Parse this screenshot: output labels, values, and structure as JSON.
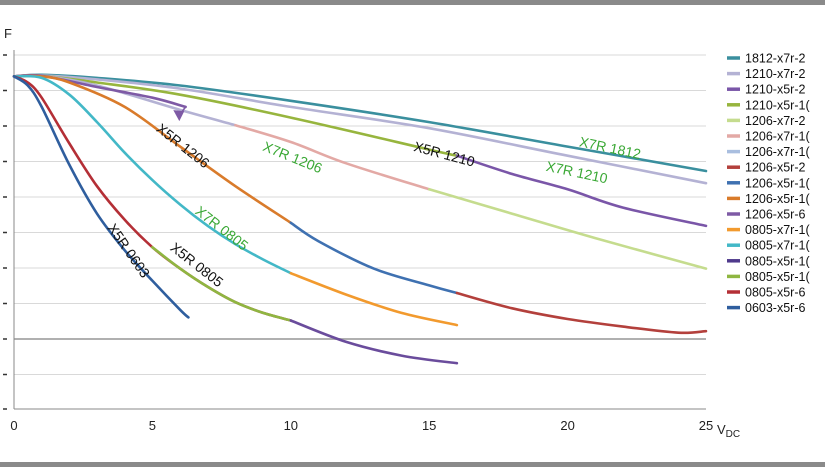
{
  "chart_data": {
    "type": "line",
    "xlabel": "V",
    "xlabel_sub": "DC",
    "ylabel": "F",
    "xlim": [
      0,
      25
    ],
    "ylim": [
      -3,
      8.6
    ],
    "x_ticks": [
      0,
      5,
      10,
      15,
      20,
      25
    ],
    "grid": true,
    "legend_position": "right",
    "legend": [
      {
        "label": "1812-x7r-2",
        "color": "#3a8f9e"
      },
      {
        "label": "1210-x7r-2",
        "color": "#b4b2d4"
      },
      {
        "label": "1210-x5r-2",
        "color": "#7a56a8"
      },
      {
        "label": "1210-x5r-1(",
        "color": "#97b53e"
      },
      {
        "label": "1206-x7r-2",
        "color": "#c5dc8e"
      },
      {
        "label": "1206-x7r-1(",
        "color": "#e3a9a5"
      },
      {
        "label": "1206-x7r-1(",
        "color": "#a9bedf"
      },
      {
        "label": "1206-x5r-2",
        "color": "#b3403c"
      },
      {
        "label": "1206-x5r-1(",
        "color": "#3f71b1"
      },
      {
        "label": "1206-x5r-1(",
        "color": "#d97b2b"
      },
      {
        "label": "1206-x5r-6",
        "color": "#7e5aa5"
      },
      {
        "label": "0805-x7r-1(",
        "color": "#f29a2e"
      },
      {
        "label": "0805-x7r-1(",
        "color": "#43b8c7"
      },
      {
        "label": "0805-x5r-1(",
        "color": "#4f3a8c"
      },
      {
        "label": "0805-x5r-1(",
        "color": "#8fb641"
      },
      {
        "label": "0805-x5r-6",
        "color": "#b42f36"
      },
      {
        "label": "0603-x5r-6",
        "color": "#2f5e9e"
      }
    ],
    "series": [
      {
        "color": "#3a8f9e",
        "points": [
          [
            0,
            7.9
          ],
          [
            1,
            7.95
          ],
          [
            3,
            7.85
          ],
          [
            6,
            7.6
          ],
          [
            10,
            7.1
          ],
          [
            15,
            6.4
          ],
          [
            20,
            5.6
          ],
          [
            25,
            4.8
          ]
        ]
      },
      {
        "color": "#b4b2d4",
        "points": [
          [
            0,
            7.9
          ],
          [
            1,
            7.93
          ],
          [
            3,
            7.8
          ],
          [
            6,
            7.5
          ],
          [
            10,
            6.9
          ],
          [
            15,
            6.2
          ],
          [
            20,
            5.3
          ],
          [
            25,
            4.4
          ]
        ]
      },
      {
        "color": "#97b53e",
        "points": [
          [
            0,
            7.9
          ],
          [
            1,
            7.92
          ],
          [
            3,
            7.7
          ],
          [
            6,
            7.3
          ],
          [
            10,
            6.55
          ],
          [
            15,
            5.5
          ],
          [
            16,
            5.3
          ]
        ]
      },
      {
        "color": "#7a56a8",
        "points": [
          [
            16,
            5.3
          ],
          [
            18,
            4.7
          ],
          [
            20,
            4.2
          ],
          [
            22,
            3.6
          ],
          [
            25,
            3.0
          ]
        ]
      },
      {
        "color": "#b4b2d4",
        "points": [
          [
            0,
            7.9
          ],
          [
            1,
            7.92
          ],
          [
            3,
            7.6
          ],
          [
            6,
            6.8
          ],
          [
            8,
            6.3
          ]
        ]
      },
      {
        "color": "#e3a9a5",
        "points": [
          [
            8,
            6.3
          ],
          [
            10,
            5.75
          ],
          [
            12,
            5.05
          ],
          [
            15,
            4.2
          ]
        ]
      },
      {
        "color": "#c5dc8e",
        "points": [
          [
            15,
            4.2
          ],
          [
            18,
            3.4
          ],
          [
            21,
            2.6
          ],
          [
            25,
            1.6
          ]
        ]
      },
      {
        "color": "#7e5aa5",
        "points": [
          [
            0,
            7.9
          ],
          [
            1,
            7.92
          ],
          [
            3,
            7.55
          ],
          [
            5,
            7.2
          ],
          [
            6.2,
            6.9
          ]
        ]
      },
      {
        "color": "#d97b2b",
        "points": [
          [
            0,
            7.9
          ],
          [
            1,
            7.9
          ],
          [
            2,
            7.7
          ],
          [
            4,
            6.9
          ],
          [
            6,
            5.6
          ],
          [
            8,
            4.3
          ],
          [
            10,
            3.1
          ]
        ]
      },
      {
        "color": "#3f71b1",
        "points": [
          [
            10,
            3.1
          ],
          [
            11,
            2.5
          ],
          [
            13,
            1.6
          ],
          [
            15,
            1.05
          ],
          [
            16,
            0.8
          ]
        ]
      },
      {
        "color": "#b3403c",
        "points": [
          [
            16,
            0.8
          ],
          [
            18,
            0.3
          ],
          [
            20,
            -0.05
          ],
          [
            22,
            -0.3
          ],
          [
            24,
            -0.5
          ],
          [
            25,
            -0.45
          ]
        ]
      },
      {
        "color": "#43b8c7",
        "points": [
          [
            0,
            7.9
          ],
          [
            1,
            7.85
          ],
          [
            2,
            7.3
          ],
          [
            3,
            6.4
          ],
          [
            4,
            5.4
          ],
          [
            5,
            4.5
          ],
          [
            6,
            3.7
          ],
          [
            7,
            3.0
          ],
          [
            8,
            2.4
          ],
          [
            9,
            1.9
          ],
          [
            10,
            1.45
          ]
        ]
      },
      {
        "color": "#f29a2e",
        "points": [
          [
            10,
            1.45
          ],
          [
            12,
            0.75
          ],
          [
            14,
            0.15
          ],
          [
            16,
            -0.25
          ]
        ]
      },
      {
        "color": "#b42f36",
        "points": [
          [
            0,
            7.9
          ],
          [
            0.5,
            7.7
          ],
          [
            1,
            7.2
          ],
          [
            2,
            5.7
          ],
          [
            3,
            4.3
          ],
          [
            4,
            3.2
          ],
          [
            5,
            2.3
          ],
          [
            6,
            1.6
          ],
          [
            7,
            1.0
          ],
          [
            8,
            0.5
          ],
          [
            9,
            0.15
          ],
          [
            10,
            -0.1
          ]
        ]
      },
      {
        "color": "#8fb641",
        "points": [
          [
            5,
            2.3
          ],
          [
            6,
            1.6
          ],
          [
            7,
            1.0
          ],
          [
            8,
            0.5
          ],
          [
            9,
            0.15
          ],
          [
            10,
            -0.1
          ]
        ]
      },
      {
        "color": "#6a4c9c",
        "points": [
          [
            10,
            -0.1
          ],
          [
            12,
            -0.8
          ],
          [
            14,
            -1.25
          ],
          [
            16,
            -1.5
          ]
        ]
      },
      {
        "color": "#2f5e9e",
        "points": [
          [
            0,
            7.9
          ],
          [
            0.5,
            7.6
          ],
          [
            1,
            6.9
          ],
          [
            2,
            5.0
          ],
          [
            3,
            3.4
          ],
          [
            4,
            2.2
          ],
          [
            5,
            1.2
          ],
          [
            6,
            0.25
          ],
          [
            6.3,
            0.0
          ]
        ]
      }
    ],
    "annotations": [
      {
        "text": "X5R 1206",
        "x": 6.0,
        "y": 5.5,
        "color": "#111111",
        "rotate": 38
      },
      {
        "text": "X7R 1206",
        "x": 10.0,
        "y": 5.1,
        "color": "#3aa835",
        "rotate": 22
      },
      {
        "text": "X5R 1210",
        "x": 15.5,
        "y": 5.2,
        "color": "#111111",
        "rotate": 15
      },
      {
        "text": "X7R 1812",
        "x": 21.5,
        "y": 5.4,
        "color": "#3aa835",
        "rotate": 12
      },
      {
        "text": "X7R 1210",
        "x": 20.3,
        "y": 4.6,
        "color": "#3aa835",
        "rotate": 12
      },
      {
        "text": "X7R 0805",
        "x": 7.4,
        "y": 2.8,
        "color": "#3aa835",
        "rotate": 38
      },
      {
        "text": "X5R 0805",
        "x": 6.5,
        "y": 1.6,
        "color": "#111111",
        "rotate": 38
      },
      {
        "text": "X5R 0603",
        "x": 4.0,
        "y": 2.1,
        "color": "#111111",
        "rotate": 55
      }
    ],
    "arrow": {
      "from": [
        6.2,
        6.9
      ],
      "to": [
        5.9,
        6.5
      ],
      "color": "#7e5aa5"
    }
  }
}
